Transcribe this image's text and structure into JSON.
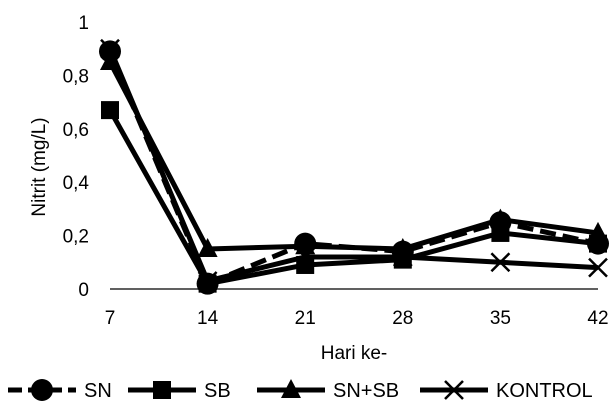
{
  "chart_data": {
    "type": "line",
    "title": "",
    "xlabel": "Hari ke-",
    "ylabel": "Nitrit (mg/L)",
    "x": [
      7,
      14,
      21,
      28,
      35,
      42
    ],
    "x_tick_labels": [
      "7",
      "14",
      "21",
      "28",
      "35",
      "42"
    ],
    "y_tick_labels": [
      "0",
      "0,2",
      "0,4",
      "0,6",
      "0,8",
      "1"
    ],
    "ylim": [
      0,
      1
    ],
    "grid": false,
    "legend_position": "bottom",
    "series": [
      {
        "name": "SN",
        "marker": "circle",
        "dash": "dashed",
        "color": "#000000",
        "values": [
          0.89,
          0.02,
          0.17,
          0.14,
          0.25,
          0.17
        ]
      },
      {
        "name": "SB",
        "marker": "square",
        "dash": "solid",
        "color": "#000000",
        "values": [
          0.67,
          0.02,
          0.09,
          0.11,
          0.21,
          0.17
        ]
      },
      {
        "name": "SN+SB",
        "marker": "triangle",
        "dash": "solid",
        "color": "#000000",
        "values": [
          0.85,
          0.15,
          0.16,
          0.15,
          0.26,
          0.21
        ]
      },
      {
        "name": "KONTROL",
        "marker": "x",
        "dash": "solid",
        "color": "#000000",
        "values": [
          0.9,
          0.03,
          0.12,
          0.12,
          0.1,
          0.08
        ]
      }
    ]
  }
}
